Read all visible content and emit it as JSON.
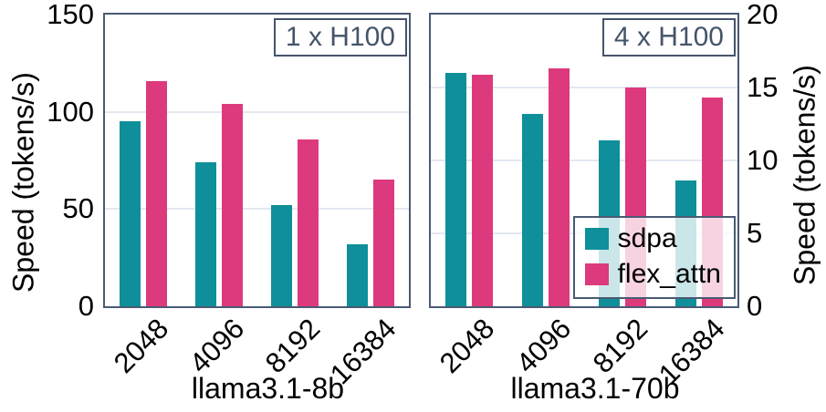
{
  "figure": {
    "background": "#ffffff",
    "colors": {
      "spine": "#4a5a73",
      "grid": "#e3e8f0",
      "annotation": "#44546a",
      "tick_text": "#000000",
      "legend_background": "rgba(255,255,255,0.78)"
    }
  },
  "chart_data": [
    {
      "type": "bar",
      "annotation": "1 x H100",
      "xlabel": "llama3.1-8b",
      "ylabel": "Speed (tokens/s)",
      "yaxis_side": "left",
      "ylim": [
        0,
        150
      ],
      "yticks": [
        0,
        50,
        100,
        150
      ],
      "grid": true,
      "categories": [
        "2048",
        "4096",
        "8192",
        "16384"
      ],
      "series": [
        {
          "name": "sdpa",
          "color": "#0e8f9a",
          "values": [
            95,
            74,
            52,
            32
          ]
        },
        {
          "name": "flex_attn",
          "color": "#dc3a7c",
          "values": [
            116,
            104,
            86,
            65
          ]
        }
      ],
      "legend": null
    },
    {
      "type": "bar",
      "annotation": "4 x H100",
      "xlabel": "llama3.1-70b",
      "ylabel": "Speed (tokens/s)",
      "yaxis_side": "right",
      "ylim": [
        0,
        20
      ],
      "yticks": [
        0,
        5,
        10,
        15,
        20
      ],
      "grid": true,
      "categories": [
        "2048",
        "4096",
        "8192",
        "16384"
      ],
      "series": [
        {
          "name": "sdpa",
          "color": "#0e8f9a",
          "values": [
            16.0,
            13.2,
            11.4,
            8.6
          ]
        },
        {
          "name": "flex_attn",
          "color": "#dc3a7c",
          "values": [
            15.9,
            16.3,
            15.0,
            14.3
          ]
        }
      ],
      "legend": {
        "position": "lower right",
        "entries": [
          "sdpa",
          "flex_attn"
        ]
      }
    }
  ]
}
